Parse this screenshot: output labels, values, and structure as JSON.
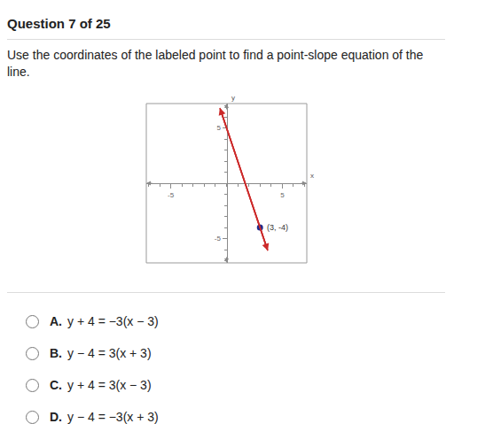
{
  "header": {
    "title": "Question 7 of 25"
  },
  "prompt": "Use the coordinates of the labeled point to find a point-slope equation of the line.",
  "chart_data": {
    "type": "line",
    "x_label": "x",
    "y_label": "y",
    "x": [
      -0.6,
      3.7
    ],
    "values": [
      6.8,
      -6.1
    ],
    "color": "#cc2a2a",
    "points": [
      {
        "x": 3,
        "y": -4,
        "label": "(3, -4)",
        "color": "#1f2a8c"
      }
    ],
    "xlim": [
      -7.2,
      7.2
    ],
    "ylim": [
      -7.2,
      7.2
    ],
    "xticks": [
      -5,
      5
    ],
    "yticks": [
      -5,
      5
    ],
    "grid": false
  },
  "options": [
    {
      "letter": "A.",
      "text": "y + 4 = −3(x − 3)"
    },
    {
      "letter": "B.",
      "text": "y − 4 = 3(x + 3)"
    },
    {
      "letter": "C.",
      "text": "y + 4 = 3(x − 3)"
    },
    {
      "letter": "D.",
      "text": "y − 4 = −3(x + 3)"
    }
  ]
}
